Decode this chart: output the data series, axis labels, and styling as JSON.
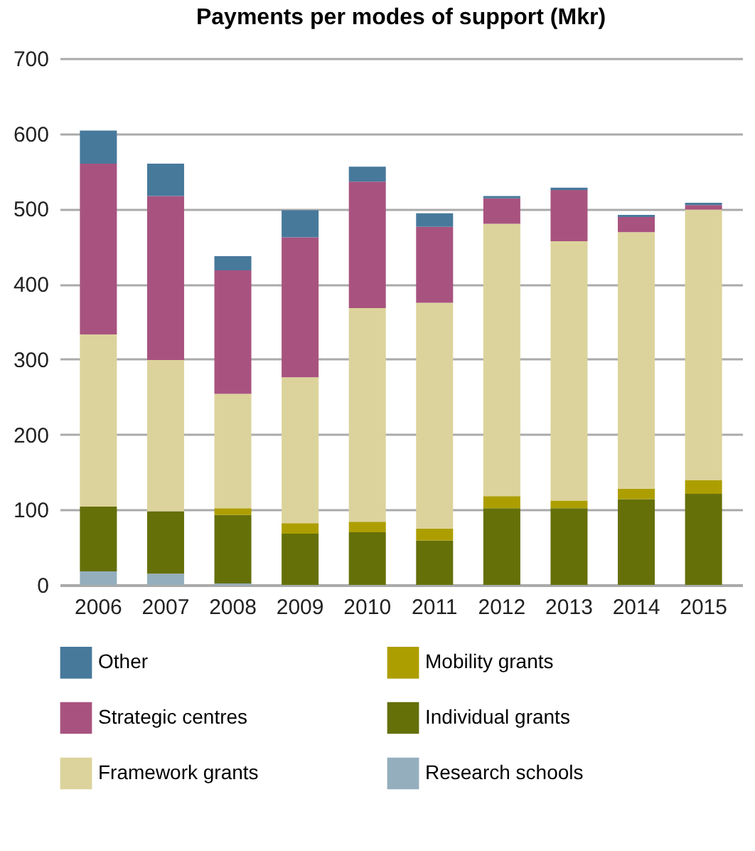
{
  "chart_data": {
    "type": "bar",
    "title": "Payments per modes of support (Mkr)",
    "stacked": true,
    "grid": "y",
    "legend": "bottom",
    "categories": [
      "2006",
      "2007",
      "2008",
      "2009",
      "2010",
      "2011",
      "2012",
      "2013",
      "2014",
      "2015"
    ],
    "ylim": [
      0,
      700
    ],
    "yticks": [
      0,
      100,
      200,
      300,
      400,
      500,
      600,
      700
    ],
    "series": [
      {
        "name": "Research schools",
        "color": "#94aebd",
        "values": [
          18,
          15,
          2,
          0,
          0,
          0,
          0,
          0,
          0,
          0
        ]
      },
      {
        "name": "Individual grants",
        "color": "#657009",
        "values": [
          86,
          83,
          91,
          68,
          70,
          59,
          102,
          102,
          114,
          121
        ]
      },
      {
        "name": "Mobility grants",
        "color": "#ad9e00",
        "values": [
          0,
          0,
          9,
          14,
          14,
          16,
          16,
          10,
          14,
          18
        ]
      },
      {
        "name": "Framework grants",
        "color": "#dcd39c",
        "values": [
          229,
          201,
          152,
          194,
          284,
          300,
          362,
          345,
          341,
          360
        ]
      },
      {
        "name": "Strategic centres",
        "color": "#a8537f",
        "values": [
          227,
          218,
          164,
          186,
          168,
          101,
          34,
          68,
          20,
          6
        ]
      },
      {
        "name": "Other",
        "color": "#47799b",
        "values": [
          44,
          43,
          19,
          36,
          20,
          18,
          3,
          3,
          3,
          3
        ]
      }
    ]
  }
}
